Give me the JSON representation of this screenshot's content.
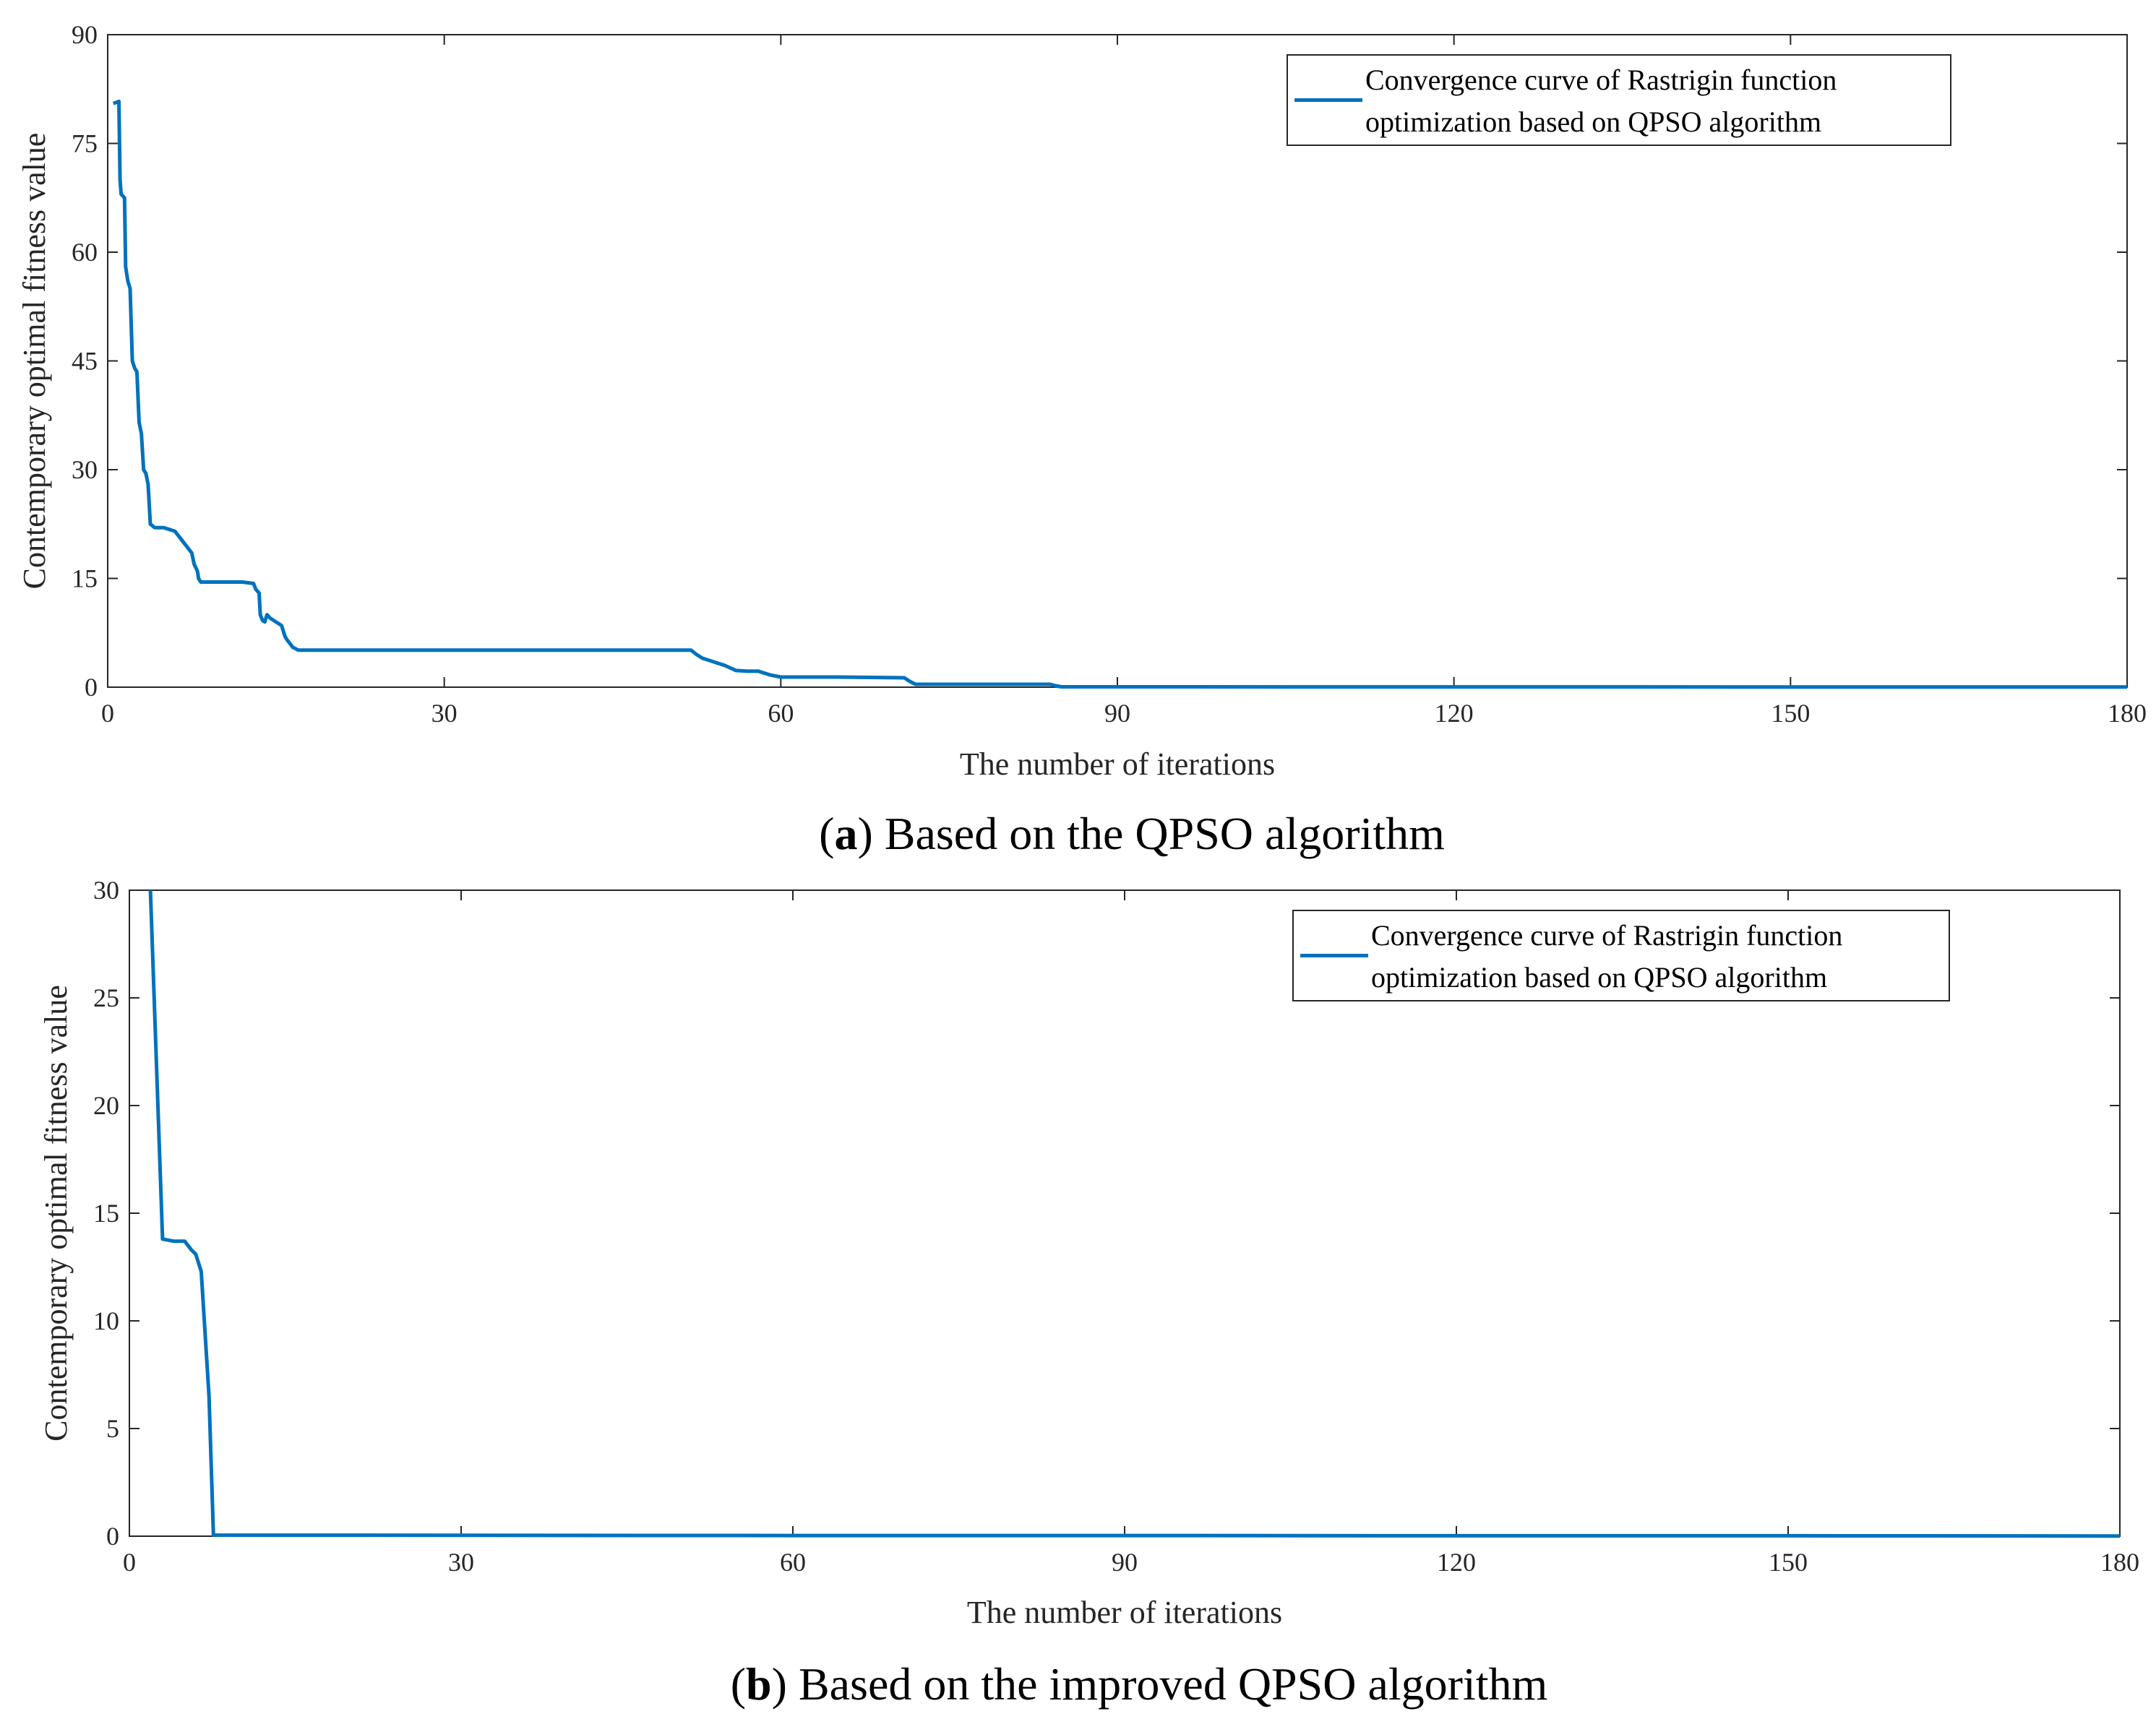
{
  "chart_data": [
    {
      "type": "line",
      "title": "",
      "xlabel": "The number of iterations",
      "ylabel": "Contemporary optimal fitness value",
      "xlim": [
        0,
        180
      ],
      "ylim": [
        0,
        90
      ],
      "xticks": [
        0,
        30,
        60,
        90,
        120,
        150,
        180
      ],
      "yticks": [
        0,
        15,
        30,
        45,
        60,
        75,
        90
      ],
      "grid": false,
      "legend_position": "top-right",
      "line_color": "#0072BD",
      "caption": {
        "prefix": "(",
        "letter": "a",
        "suffix": ") Based on the QPSO algorithm"
      },
      "series": [
        {
          "name": "Convergence curve of Rastrigin function optimization based on QPSO algorithm",
          "legend_lines": [
            "Convergence curve of Rastrigin function",
            "optimization based on QPSO algorithm"
          ],
          "x": [
            0.5,
            1,
            1.1,
            1.2,
            1.5,
            1.6,
            1.8,
            2.0,
            2.2,
            2.4,
            2.6,
            2.8,
            3.0,
            3.2,
            3.4,
            3.6,
            3.8,
            4.2,
            4.5,
            5.0,
            6.0,
            6.5,
            7.0,
            7.5,
            7.7,
            8.0,
            8.1,
            8.3,
            9,
            12,
            13.0,
            13.2,
            13.5,
            13.6,
            13.8,
            14.0,
            14.2,
            14.5,
            15.0,
            15.5,
            15.8,
            16.0,
            16.5,
            17,
            18,
            30,
            52,
            52.5,
            53,
            54,
            55,
            56,
            57,
            58,
            59,
            60,
            65,
            71,
            71.5,
            72,
            84,
            84.5,
            85,
            180
          ],
          "y": [
            80.5,
            80.8,
            70,
            68,
            67.5,
            58,
            56,
            55,
            45,
            44,
            43.5,
            36.5,
            35,
            30,
            29.5,
            28,
            22.5,
            22,
            22,
            22,
            21.5,
            20.5,
            19.5,
            18.5,
            17,
            16,
            15,
            14.5,
            14.5,
            14.5,
            14.3,
            13.5,
            13,
            10,
            9.2,
            9,
            10,
            9.5,
            9,
            8.5,
            7,
            6.5,
            5.5,
            5.1,
            5.1,
            5.1,
            5.1,
            4.5,
            4,
            3.5,
            3,
            2.3,
            2.2,
            2.2,
            1.7,
            1.4,
            1.4,
            1.3,
            0.8,
            0.4,
            0.4,
            0.2,
            0.05,
            0.02
          ]
        }
      ]
    },
    {
      "type": "line",
      "title": "",
      "xlabel": "The number of iterations",
      "ylabel": "Contemporary optimal fitness value",
      "xlim": [
        0,
        180
      ],
      "ylim": [
        0,
        30
      ],
      "xticks": [
        0,
        30,
        60,
        90,
        120,
        150,
        180
      ],
      "yticks": [
        0,
        5,
        10,
        15,
        20,
        25,
        30
      ],
      "grid": false,
      "legend_position": "top-right",
      "line_color": "#0072BD",
      "caption": {
        "prefix": "(",
        "letter": "b",
        "suffix": ") Based on the improved QPSO algorithm"
      },
      "series": [
        {
          "name": "Convergence curve of Rastrigin function optimization based on QPSO algorithm",
          "legend_lines": [
            "Convergence curve of Rastrigin function",
            "optimization based on QPSO algorithm"
          ],
          "x": [
            1.9,
            3.0,
            4.0,
            5.0,
            5.6,
            6.0,
            6.5,
            7.2,
            7.6,
            30,
            60,
            90,
            120,
            150,
            180
          ],
          "y": [
            30,
            13.8,
            13.7,
            13.7,
            13.3,
            13.1,
            12.3,
            6.5,
            0.05,
            0.04,
            0.03,
            0.03,
            0.02,
            0.02,
            0.01
          ]
        }
      ]
    }
  ]
}
